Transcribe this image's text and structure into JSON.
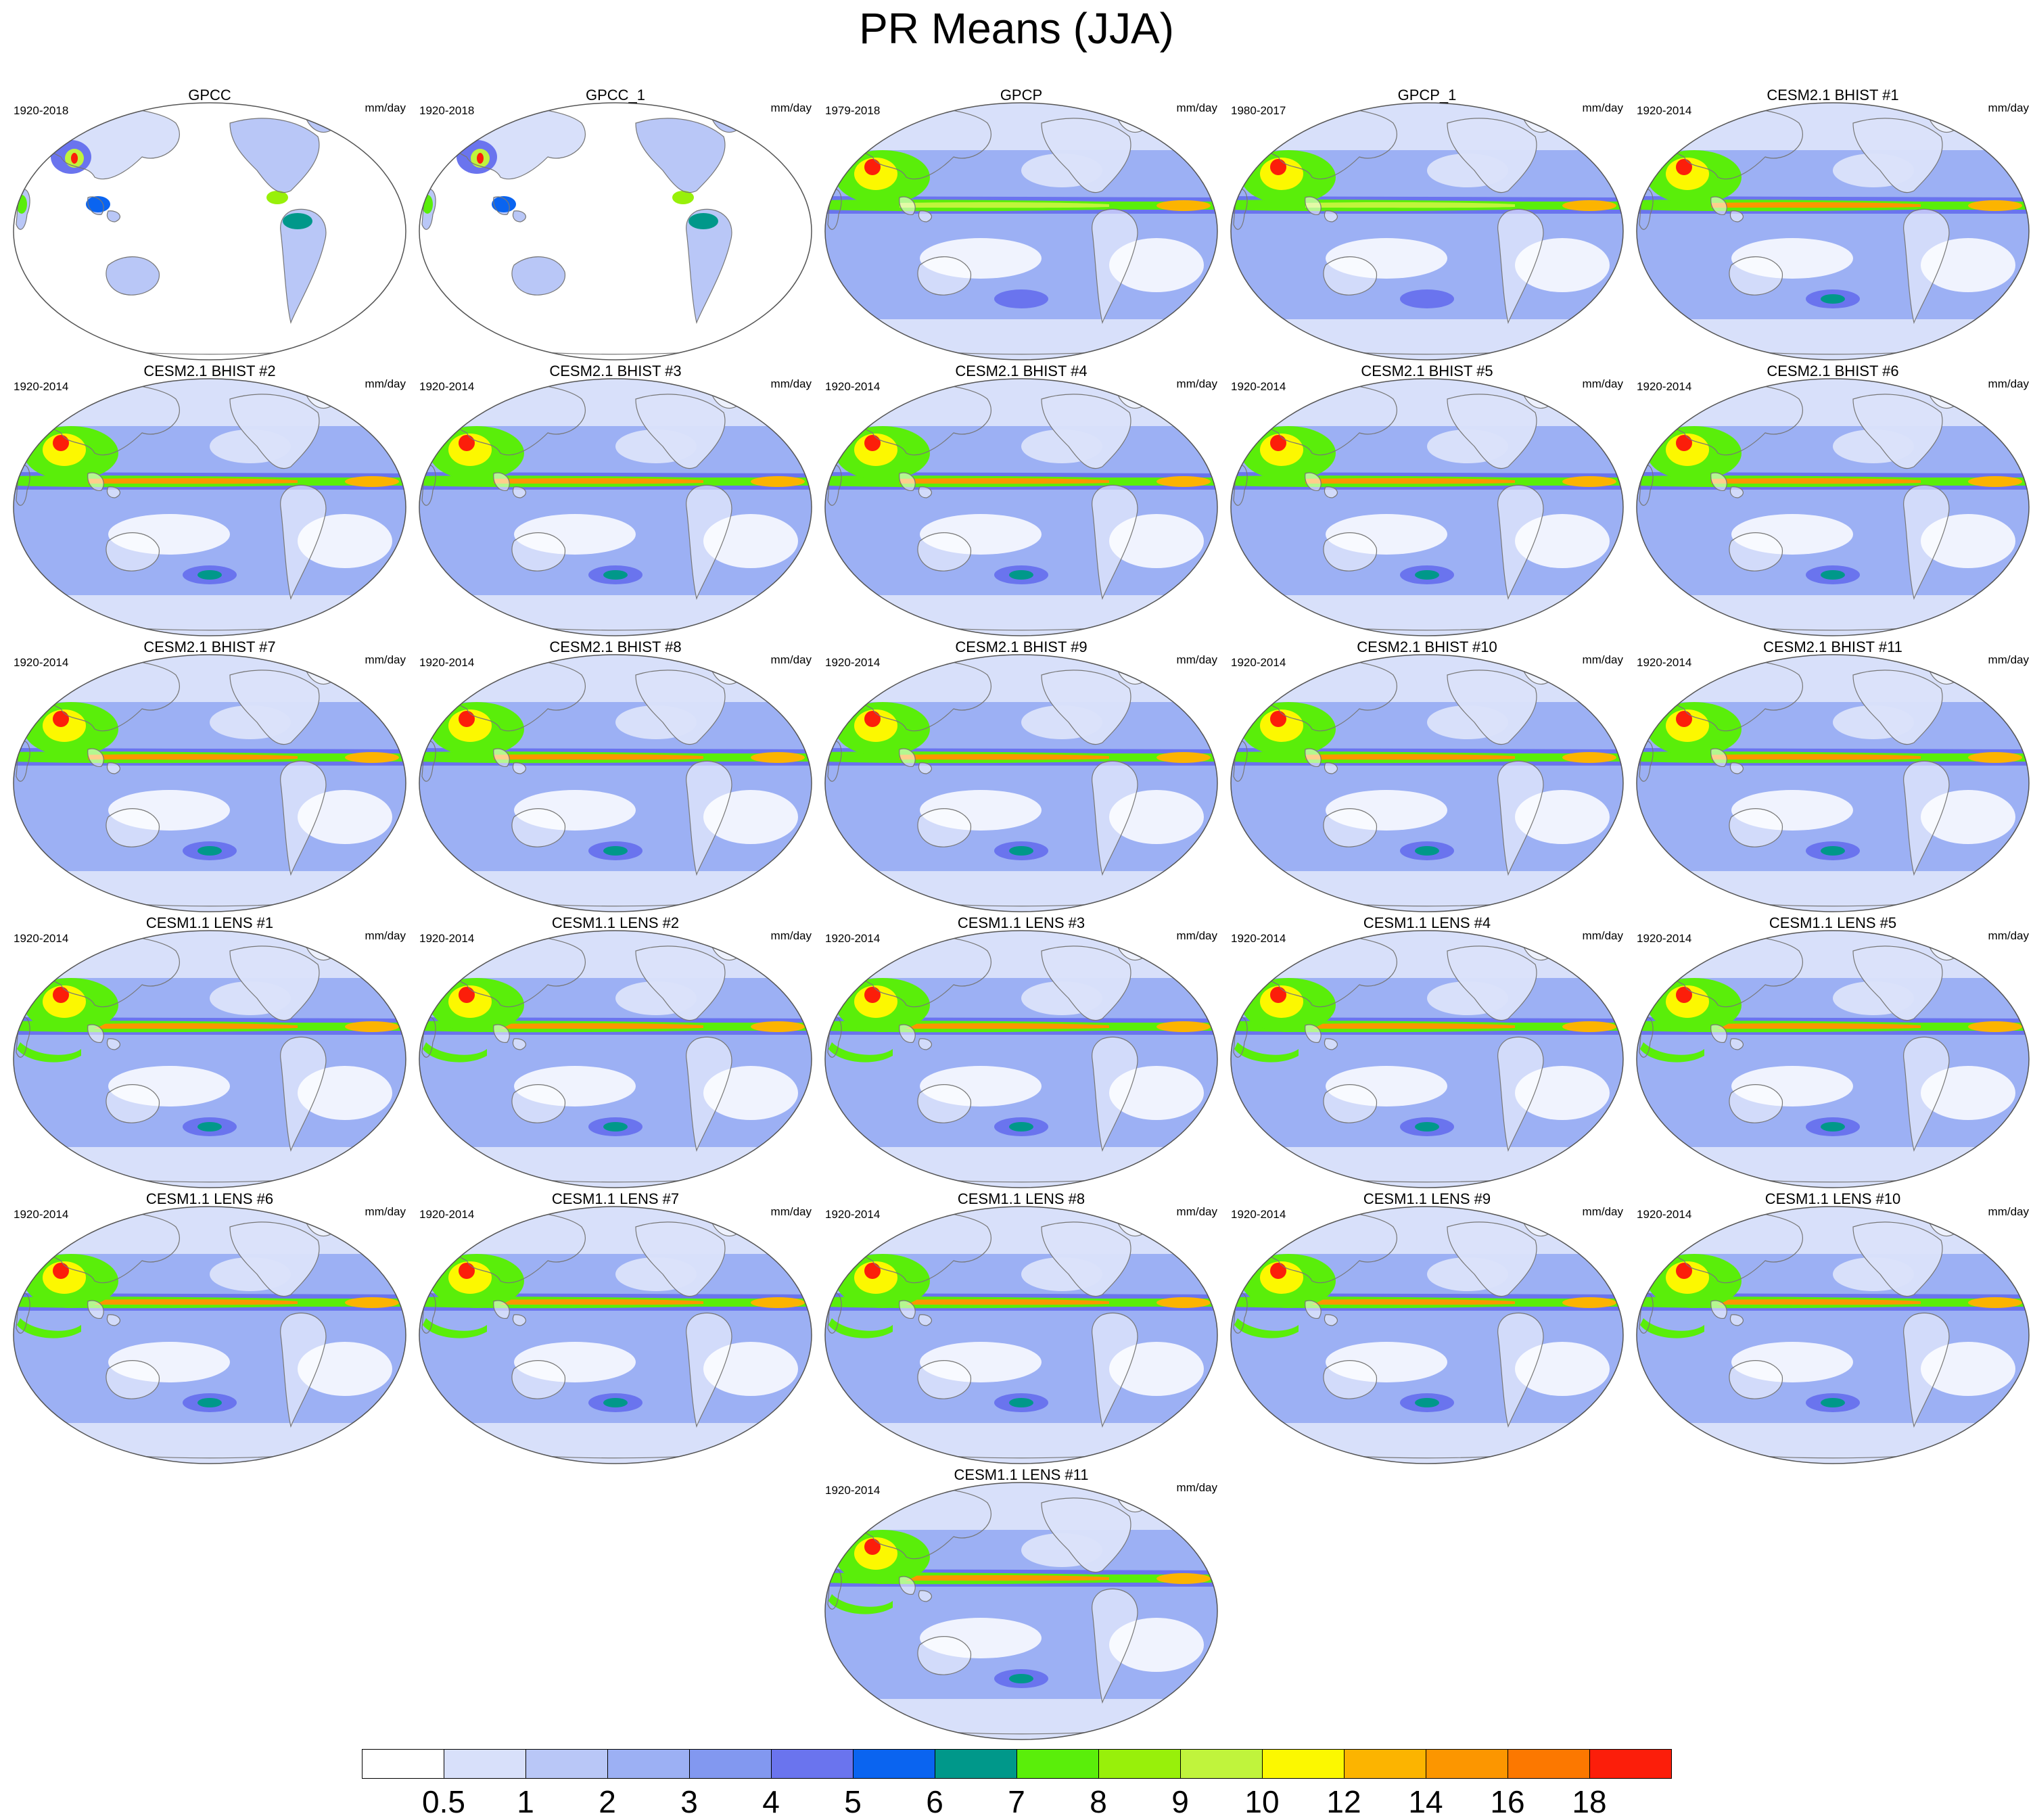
{
  "title": "PR Means (JJA)",
  "units": "mm/day",
  "panels": [
    {
      "title": "GPCC",
      "period": "1920-2018",
      "variant": "obs_land"
    },
    {
      "title": "GPCC_1",
      "period": "1920-2018",
      "variant": "obs_land"
    },
    {
      "title": "GPCP",
      "period": "1979-2018",
      "variant": "obs_global"
    },
    {
      "title": "GPCP_1",
      "period": "1980-2017",
      "variant": "obs_global"
    },
    {
      "title": "CESM2.1 BHIST #1",
      "period": "1920-2014",
      "variant": "cesm2"
    },
    {
      "title": "CESM2.1 BHIST #2",
      "period": "1920-2014",
      "variant": "cesm2"
    },
    {
      "title": "CESM2.1 BHIST #3",
      "period": "1920-2014",
      "variant": "cesm2"
    },
    {
      "title": "CESM2.1 BHIST #4",
      "period": "1920-2014",
      "variant": "cesm2"
    },
    {
      "title": "CESM2.1 BHIST #5",
      "period": "1920-2014",
      "variant": "cesm2"
    },
    {
      "title": "CESM2.1 BHIST #6",
      "period": "1920-2014",
      "variant": "cesm2"
    },
    {
      "title": "CESM2.1 BHIST #7",
      "period": "1920-2014",
      "variant": "cesm2"
    },
    {
      "title": "CESM2.1 BHIST #8",
      "period": "1920-2014",
      "variant": "cesm2"
    },
    {
      "title": "CESM2.1 BHIST #9",
      "period": "1920-2014",
      "variant": "cesm2"
    },
    {
      "title": "CESM2.1 BHIST #10",
      "period": "1920-2014",
      "variant": "cesm2"
    },
    {
      "title": "CESM2.1 BHIST #11",
      "period": "1920-2014",
      "variant": "cesm2"
    },
    {
      "title": "CESM1.1 LENS #1",
      "period": "1920-2014",
      "variant": "cesm1"
    },
    {
      "title": "CESM1.1 LENS #2",
      "period": "1920-2014",
      "variant": "cesm1"
    },
    {
      "title": "CESM1.1 LENS #3",
      "period": "1920-2014",
      "variant": "cesm1"
    },
    {
      "title": "CESM1.1 LENS #4",
      "period": "1920-2014",
      "variant": "cesm1"
    },
    {
      "title": "CESM1.1 LENS #5",
      "period": "1920-2014",
      "variant": "cesm1"
    },
    {
      "title": "CESM1.1 LENS #6",
      "period": "1920-2014",
      "variant": "cesm1"
    },
    {
      "title": "CESM1.1 LENS #7",
      "period": "1920-2014",
      "variant": "cesm1"
    },
    {
      "title": "CESM1.1 LENS #8",
      "period": "1920-2014",
      "variant": "cesm1"
    },
    {
      "title": "CESM1.1 LENS #9",
      "period": "1920-2014",
      "variant": "cesm1"
    },
    {
      "title": "CESM1.1 LENS #10",
      "period": "1920-2014",
      "variant": "cesm1"
    },
    {
      "title": "CESM1.1 LENS #11",
      "period": "1920-2014",
      "variant": "cesm1"
    }
  ],
  "colorbar": {
    "labels": [
      "0.5",
      "1",
      "2",
      "3",
      "4",
      "5",
      "6",
      "7",
      "8",
      "9",
      "10",
      "12",
      "14",
      "16",
      "18"
    ],
    "colors": [
      "#ffffff",
      "#d8e0fa",
      "#b9c7f7",
      "#9cb0f4",
      "#8298f0",
      "#6a74ee",
      "#0a64f0",
      "#00988a",
      "#5aee0a",
      "#98f00a",
      "#c0f43c",
      "#fcf800",
      "#fcb400",
      "#fc9600",
      "#fc7800",
      "#fc1e0a"
    ]
  }
}
